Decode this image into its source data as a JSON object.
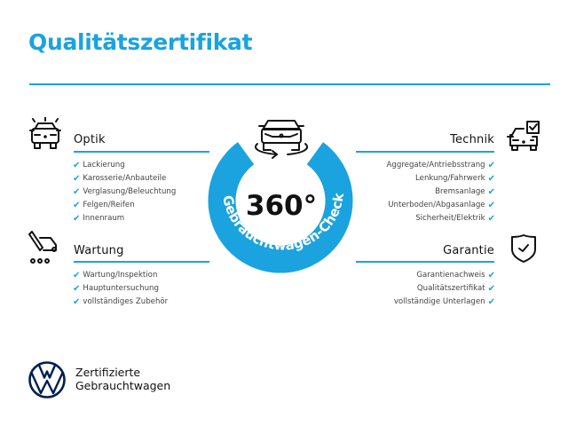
{
  "title": "Qualitätszertifikat",
  "accent_color": "#1aa3df",
  "center": {
    "value": "360°",
    "ring_text": "Gebrauchtwagen-Check",
    "icon": "car-rotate-icon"
  },
  "sections": {
    "optik": {
      "heading": "Optik",
      "icon": "car-lights-icon",
      "items": [
        "Lackierung",
        "Karosserie/Anbauteile",
        "Verglasung/Beleuchtung",
        "Felgen/Reifen",
        "Innenraum"
      ]
    },
    "wartung": {
      "heading": "Wartung",
      "icon": "service-tools-icon",
      "items": [
        "Wartung/Inspektion",
        "Hauptuntersuchung",
        "vollständiges Zubehör"
      ]
    },
    "technik": {
      "heading": "Technik",
      "icon": "car-checkbox-icon",
      "items": [
        "Aggregate/Antriebsstrang",
        "Lenkung/Fahrwerk",
        "Bremsanlage",
        "Unterboden/Abgasanlage",
        "Sicherheit/Elektrik"
      ]
    },
    "garantie": {
      "heading": "Garantie",
      "icon": "shield-check-icon",
      "items": [
        "Garantienachweis",
        "Qualitätszertifikat",
        "vollständige Unterlagen"
      ]
    }
  },
  "check_mark": "✔",
  "footer": {
    "line1": "Zertifizierte",
    "line2": "Gebrauchtwagen",
    "logo_color": "#001e50"
  }
}
